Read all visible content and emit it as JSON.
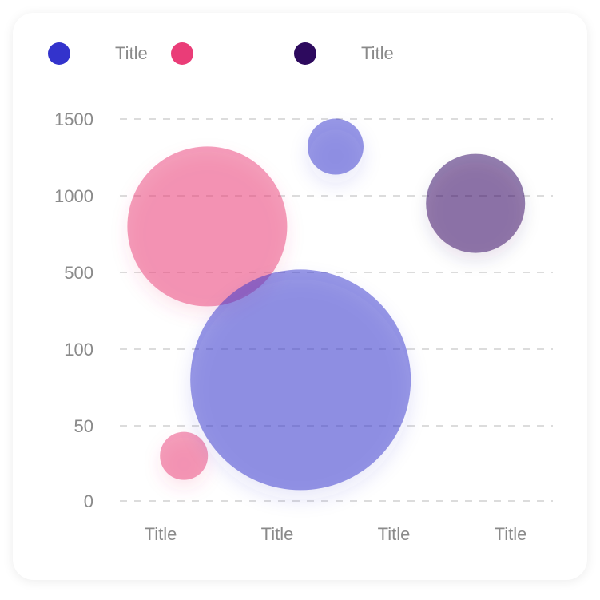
{
  "chart_data": {
    "type": "bubble",
    "legend": {
      "placement": "top-left",
      "items": [
        {
          "label": "",
          "color": "#3333cc"
        },
        {
          "label": "Title",
          "color": "#ea3d78"
        },
        {
          "label": "",
          "color": "#2d0a5e"
        },
        {
          "label": "Title",
          "color": "#2d0a5e"
        }
      ]
    },
    "categories": [
      "Title",
      "Title",
      "Title",
      "Title"
    ],
    "y_ticks": [
      "1500",
      "1000",
      "500",
      "100",
      "50",
      "0"
    ],
    "grid": true,
    "bubbles": [
      {
        "x": 0.4,
        "y": 800,
        "size": 100,
        "color": "#ea3d78"
      },
      {
        "x": 0.2,
        "y": 30,
        "size": 30,
        "color": "#ea3d78"
      },
      {
        "x": 1.2,
        "y": 80,
        "size": 138,
        "color": "#3333cc"
      },
      {
        "x": 1.5,
        "y": 1320,
        "size": 35,
        "color": "#3333cc"
      },
      {
        "x": 2.7,
        "y": 950,
        "size": 62,
        "color": "#2d0a5e"
      }
    ],
    "colors": {
      "pink": "#ea3d78",
      "blue": "#3333cc",
      "purple": "#2d0a5e",
      "grid": "#dcdcdc",
      "text": "#8a8a8a"
    }
  }
}
